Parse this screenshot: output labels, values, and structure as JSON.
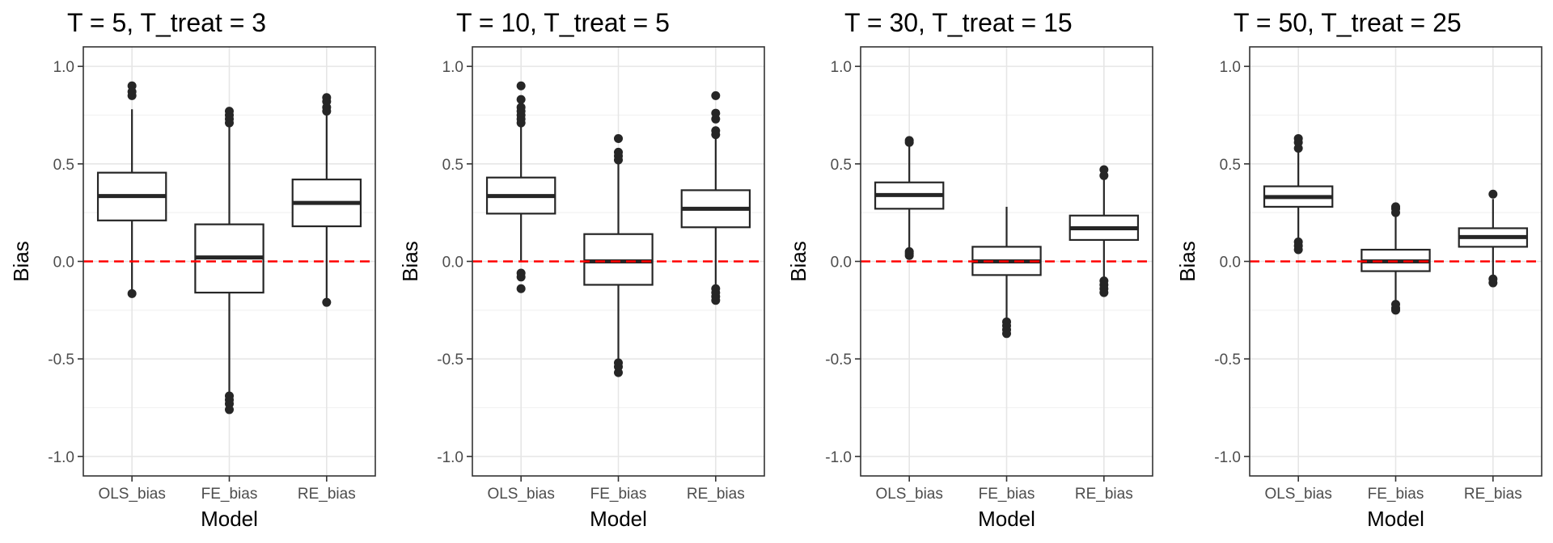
{
  "chart_data": [
    {
      "type": "box",
      "title": "T = 5, T_treat = 3",
      "xlabel": "Model",
      "ylabel": "Bias",
      "categories": [
        "OLS_bias",
        "FE_bias",
        "RE_bias"
      ],
      "ylim": [
        -1.1,
        1.1
      ],
      "yticks": [
        -1.0,
        -0.5,
        0.0,
        0.5,
        1.0
      ],
      "ytick_labels": [
        "-1.0",
        "-0.5",
        "0.0",
        "0.5",
        "1.0"
      ],
      "reference_line": 0,
      "boxes": [
        {
          "category": "OLS_bias",
          "whisker_low": -0.15,
          "q1": 0.21,
          "median": 0.335,
          "q3": 0.455,
          "whisker_high": 0.78,
          "outliers": [
            0.9,
            0.87,
            0.85,
            -0.165
          ]
        },
        {
          "category": "FE_bias",
          "whisker_low": -0.68,
          "q1": -0.16,
          "median": 0.02,
          "q3": 0.19,
          "whisker_high": 0.7,
          "outliers": [
            0.77,
            0.75,
            0.73,
            0.71,
            -0.69,
            -0.71,
            -0.73,
            -0.76
          ]
        },
        {
          "category": "RE_bias",
          "whisker_low": -0.2,
          "q1": 0.18,
          "median": 0.3,
          "q3": 0.42,
          "whisker_high": 0.75,
          "outliers": [
            0.84,
            0.82,
            0.79,
            0.77,
            -0.21
          ]
        }
      ]
    },
    {
      "type": "box",
      "title": "T = 10, T_treat = 5",
      "xlabel": "Model",
      "ylabel": "Bias",
      "categories": [
        "OLS_bias",
        "FE_bias",
        "RE_bias"
      ],
      "ylim": [
        -1.1,
        1.1
      ],
      "yticks": [
        -1.0,
        -0.5,
        0.0,
        0.5,
        1.0
      ],
      "ytick_labels": [
        "-1.0",
        "-0.5",
        "0.0",
        "0.5",
        "1.0"
      ],
      "reference_line": 0,
      "boxes": [
        {
          "category": "OLS_bias",
          "whisker_low": 0.0,
          "q1": 0.245,
          "median": 0.335,
          "q3": 0.43,
          "whisker_high": 0.69,
          "outliers": [
            0.9,
            0.83,
            0.79,
            0.77,
            0.75,
            0.73,
            0.71,
            -0.06,
            -0.08,
            -0.14
          ]
        },
        {
          "category": "FE_bias",
          "whisker_low": -0.5,
          "q1": -0.12,
          "median": 0.0,
          "q3": 0.14,
          "whisker_high": 0.5,
          "outliers": [
            0.63,
            0.56,
            0.54,
            0.52,
            -0.52,
            -0.54,
            -0.57
          ]
        },
        {
          "category": "RE_bias",
          "whisker_low": -0.12,
          "q1": 0.175,
          "median": 0.27,
          "q3": 0.365,
          "whisker_high": 0.63,
          "outliers": [
            0.85,
            0.76,
            0.73,
            0.67,
            0.65,
            -0.14,
            -0.16,
            -0.18,
            -0.2
          ]
        }
      ]
    },
    {
      "type": "box",
      "title": "T = 30, T_treat = 15",
      "xlabel": "Model",
      "ylabel": "Bias",
      "categories": [
        "OLS_bias",
        "FE_bias",
        "RE_bias"
      ],
      "ylim": [
        -1.1,
        1.1
      ],
      "yticks": [
        -1.0,
        -0.5,
        0.0,
        0.5,
        1.0
      ],
      "ytick_labels": [
        "-1.0",
        "-0.5",
        "0.0",
        "0.5",
        "1.0"
      ],
      "reference_line": 0,
      "boxes": [
        {
          "category": "OLS_bias",
          "whisker_low": 0.07,
          "q1": 0.27,
          "median": 0.34,
          "q3": 0.405,
          "whisker_high": 0.6,
          "outliers": [
            0.62,
            0.61,
            0.05,
            0.04,
            0.03
          ]
        },
        {
          "category": "FE_bias",
          "whisker_low": -0.3,
          "q1": -0.07,
          "median": 0.0,
          "q3": 0.075,
          "whisker_high": 0.28,
          "outliers": [
            -0.31,
            -0.33,
            -0.35,
            -0.37
          ]
        },
        {
          "category": "RE_bias",
          "whisker_low": -0.09,
          "q1": 0.11,
          "median": 0.17,
          "q3": 0.235,
          "whisker_high": 0.42,
          "outliers": [
            0.47,
            0.44,
            -0.1,
            -0.12,
            -0.14,
            -0.16
          ]
        }
      ]
    },
    {
      "type": "box",
      "title": "T = 50, T_treat = 25",
      "xlabel": "Model",
      "ylabel": "Bias",
      "categories": [
        "OLS_bias",
        "FE_bias",
        "RE_bias"
      ],
      "ylim": [
        -1.1,
        1.1
      ],
      "yticks": [
        -1.0,
        -0.5,
        0.0,
        0.5,
        1.0
      ],
      "ytick_labels": [
        "-1.0",
        "-0.5",
        "0.0",
        "0.5",
        "1.0"
      ],
      "reference_line": 0,
      "boxes": [
        {
          "category": "OLS_bias",
          "whisker_low": 0.12,
          "q1": 0.28,
          "median": 0.33,
          "q3": 0.385,
          "whisker_high": 0.56,
          "outliers": [
            0.63,
            0.61,
            0.58,
            0.1,
            0.08,
            0.06
          ]
        },
        {
          "category": "FE_bias",
          "whisker_low": -0.21,
          "q1": -0.05,
          "median": 0.0,
          "q3": 0.06,
          "whisker_high": 0.24,
          "outliers": [
            0.28,
            0.27,
            0.25,
            -0.22,
            -0.24,
            -0.25
          ]
        },
        {
          "category": "RE_bias",
          "whisker_low": -0.08,
          "q1": 0.075,
          "median": 0.125,
          "q3": 0.17,
          "whisker_high": 0.32,
          "outliers": [
            0.345,
            -0.09,
            -0.11
          ]
        }
      ]
    }
  ],
  "colors": {
    "box_stroke": "#262626",
    "outlier": "#262626",
    "reference_line": "#ff0000",
    "grid_major": "#e6e6e6",
    "grid_minor": "#f2f2f2",
    "panel_border": "#333333",
    "tick_text": "#4d4d4d"
  }
}
